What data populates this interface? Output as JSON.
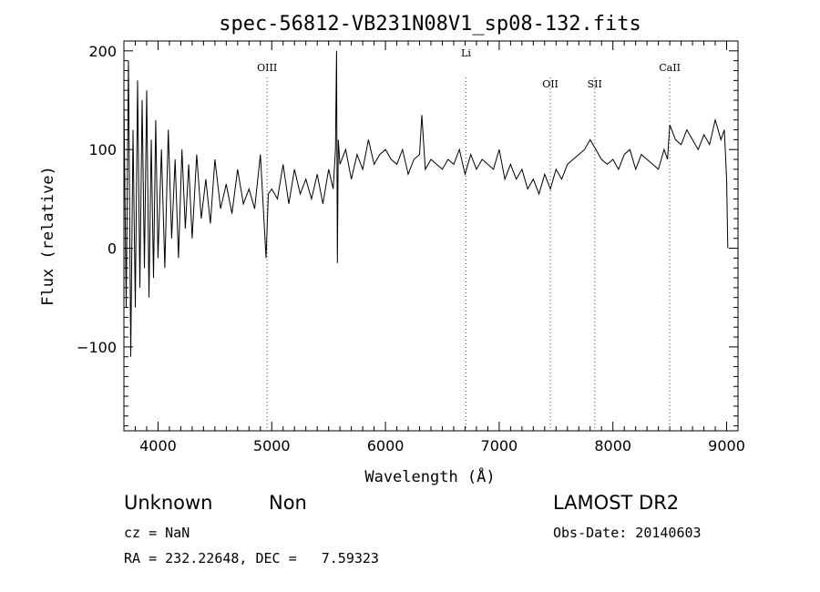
{
  "chart_data": {
    "type": "line",
    "title": "spec-56812-VB231N08V1_sp08-132.fits",
    "xlabel": "Wavelength (Å)",
    "ylabel": "Flux (relative)",
    "xlim": [
      3700,
      9100
    ],
    "ylim": [
      -185,
      210
    ],
    "xticks": [
      4000,
      5000,
      6000,
      7000,
      8000,
      9000
    ],
    "yticks": [
      -100,
      0,
      100,
      200
    ],
    "grid": false,
    "line_color": "#000000",
    "marker_color": "#ff0000",
    "lines": [
      {
        "label": "OIII",
        "x": 4959
      },
      {
        "label": "Li",
        "x": 6708
      },
      {
        "label": "OII",
        "x": 7450
      },
      {
        "label": "SII",
        "x": 7840
      },
      {
        "label": "CaII",
        "x": 8500
      }
    ],
    "series": [
      {
        "x": [
          3700,
          3720,
          3740,
          3760,
          3780,
          3800,
          3820,
          3840,
          3860,
          3880,
          3900,
          3920,
          3940,
          3960,
          3980,
          4000,
          4030,
          4060,
          4090,
          4120,
          4150,
          4180,
          4210,
          4240,
          4270,
          4300,
          4340,
          4380,
          4420,
          4460,
          4500,
          4550,
          4600,
          4650,
          4700,
          4750,
          4800,
          4850,
          4900,
          4950,
          4970,
          5000,
          5050,
          5100,
          5150,
          5200,
          5250,
          5300,
          5350,
          5400,
          5450,
          5500,
          5540,
          5560,
          5570,
          5577,
          5585,
          5600,
          5650,
          5700,
          5750,
          5800,
          5850,
          5900,
          5950,
          6000,
          6050,
          6100,
          6150,
          6200,
          6250,
          6300,
          6320,
          6350,
          6400,
          6450,
          6500,
          6550,
          6600,
          6650,
          6700,
          6750,
          6800,
          6850,
          6900,
          6950,
          7000,
          7050,
          7100,
          7150,
          7200,
          7250,
          7300,
          7350,
          7400,
          7450,
          7500,
          7550,
          7600,
          7650,
          7700,
          7750,
          7800,
          7850,
          7900,
          7950,
          8000,
          8050,
          8100,
          8150,
          8200,
          8250,
          8300,
          8350,
          8400,
          8450,
          8480,
          8500,
          8550,
          8600,
          8650,
          8700,
          8750,
          8800,
          8850,
          8900,
          8950,
          8980,
          9000,
          9010
        ],
        "y": [
          150,
          -60,
          190,
          -110,
          120,
          -60,
          170,
          -40,
          150,
          -20,
          160,
          -50,
          110,
          -30,
          130,
          -10,
          100,
          -20,
          120,
          10,
          90,
          -10,
          100,
          20,
          85,
          10,
          95,
          30,
          70,
          25,
          90,
          40,
          65,
          35,
          80,
          45,
          60,
          40,
          95,
          -10,
          55,
          60,
          50,
          85,
          45,
          80,
          55,
          70,
          50,
          75,
          45,
          80,
          60,
          100,
          200,
          -15,
          110,
          85,
          100,
          70,
          95,
          80,
          110,
          85,
          95,
          100,
          90,
          85,
          100,
          75,
          90,
          95,
          135,
          80,
          90,
          85,
          80,
          90,
          85,
          100,
          75,
          95,
          80,
          90,
          85,
          80,
          100,
          70,
          85,
          70,
          80,
          60,
          70,
          55,
          75,
          60,
          80,
          70,
          85,
          90,
          95,
          100,
          110,
          100,
          90,
          85,
          90,
          80,
          95,
          100,
          80,
          95,
          90,
          85,
          80,
          100,
          90,
          125,
          110,
          105,
          120,
          110,
          100,
          115,
          105,
          130,
          110,
          120,
          70,
          0
        ]
      }
    ]
  },
  "info": {
    "class_label": "Unknown",
    "subclass_label": "Non",
    "survey": "LAMOST DR2",
    "cz": "cz = NaN",
    "obs_date": "Obs-Date: 20140603",
    "radec": "RA = 232.22648, DEC =   7.59323"
  }
}
